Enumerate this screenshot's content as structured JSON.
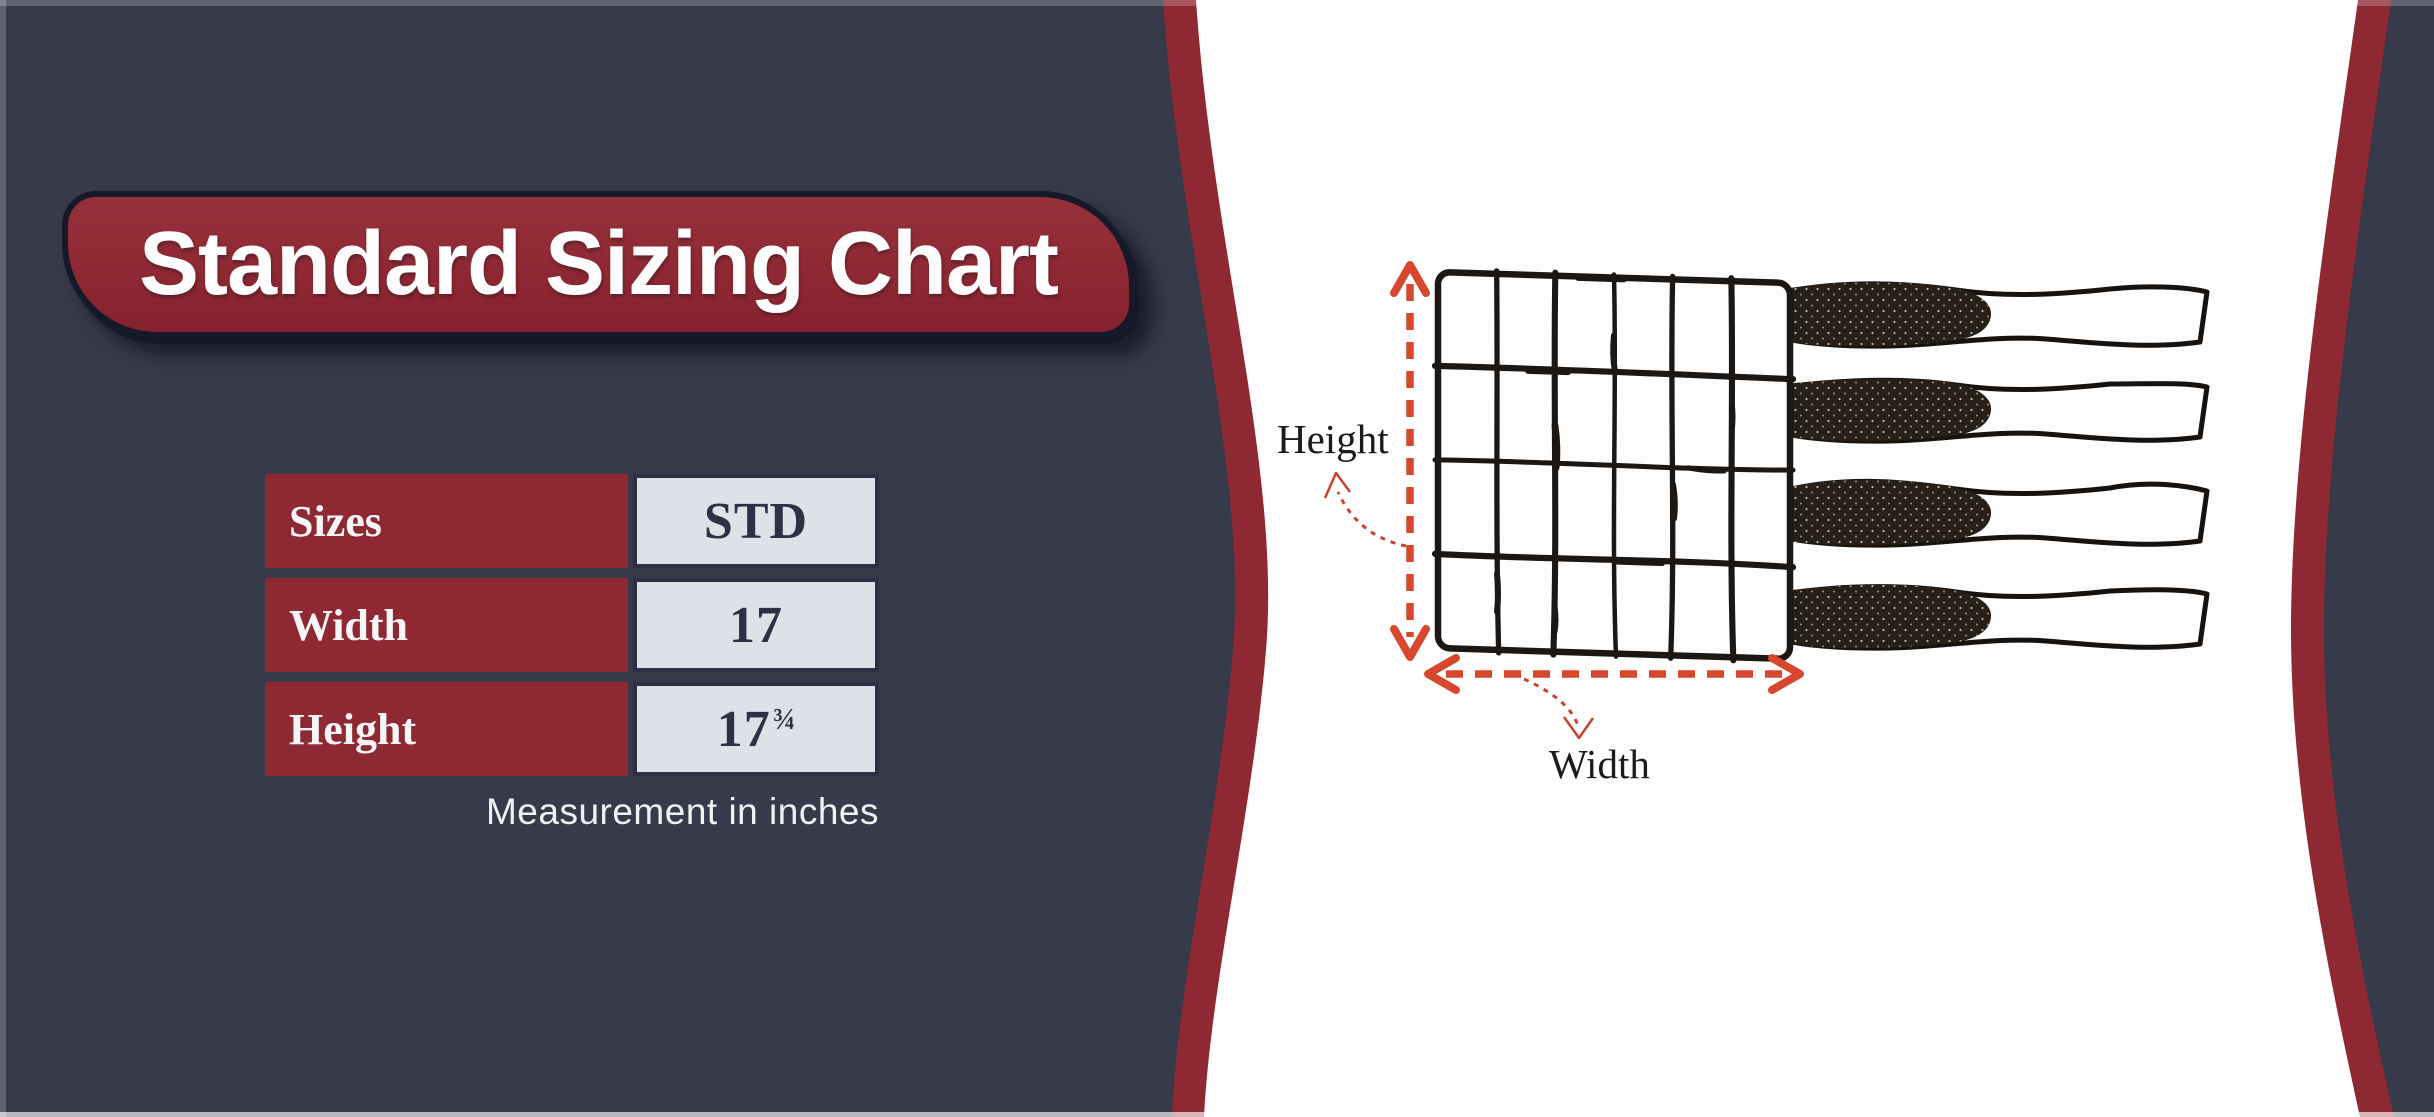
{
  "banner": {
    "title": "Standard Sizing Chart"
  },
  "size_table": {
    "rows": [
      {
        "label": "Sizes",
        "value": "STD"
      },
      {
        "label": "Width",
        "value": "17"
      },
      {
        "label": "Height",
        "value": "17¾"
      }
    ],
    "note": "Measurement in inches"
  },
  "diagram": {
    "height_label": "Height",
    "width_label": "Width",
    "grid": {
      "rows": 4,
      "columns": 6,
      "straps": 4
    }
  },
  "colors": {
    "background_navy": "#373a4b",
    "maroon": "#8e2833",
    "cell_gray": "#dfe1e8",
    "value_navy": "#2c3145",
    "arrow_red": "#d7472e",
    "pointer_red": "#c64530",
    "ink_black": "#1c1712",
    "panel_white": "#fdfdfd",
    "velcro_dark": "#262019"
  }
}
